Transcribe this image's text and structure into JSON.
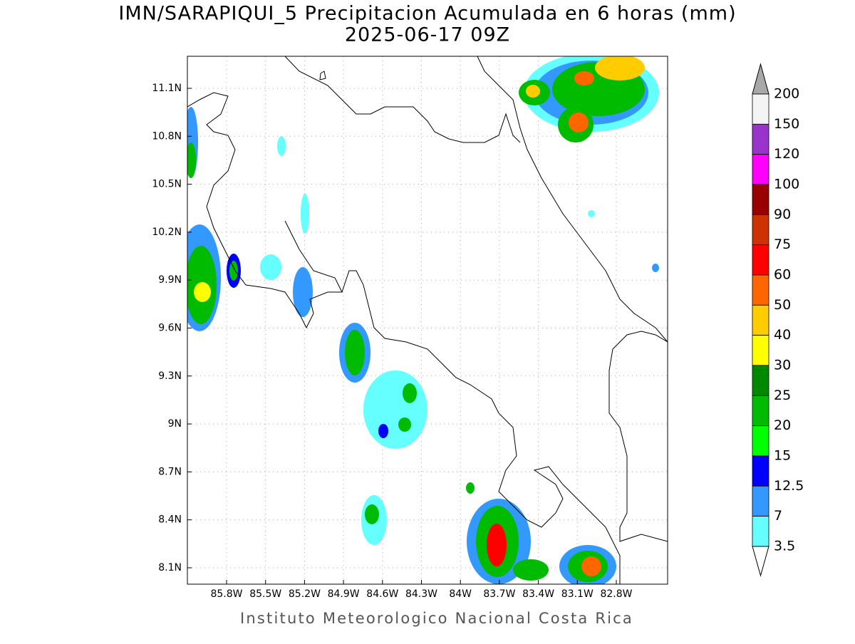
{
  "header": {
    "title": "IMN/SARAPIQUI_5 Precipitacion Acumulada en 6 horas (mm)",
    "subtitle": "2025-06-17 09Z"
  },
  "map": {
    "x_labels": [
      "85.8W",
      "85.5W",
      "85.2W",
      "84.9W",
      "84.6W",
      "84.3W",
      "84W",
      "83.7W",
      "83.4W",
      "83.1W",
      "82.8W"
    ],
    "y_labels": [
      "11.1N",
      "10.8N",
      "10.5N",
      "10.2N",
      "9.9N",
      "9.6N",
      "9.3N",
      "9N",
      "8.7N",
      "8.4N",
      "8.1N"
    ]
  },
  "colorbar": {
    "levels": [
      200,
      150,
      120,
      100,
      90,
      75,
      60,
      50,
      40,
      30,
      25,
      20,
      15,
      12.5,
      7,
      3.5
    ],
    "colors": [
      "#f4f4f4",
      "#9933cc",
      "#ff00ff",
      "#990000",
      "#cc3300",
      "#ff0000",
      "#ff6600",
      "#ffcc00",
      "#ffff00",
      "#008800",
      "#00bb00",
      "#00ff00",
      "#0000ff",
      "#3399ff",
      "#66ffff"
    ],
    "over_color": "#a8a8a8",
    "under_color": "#ffffff"
  },
  "footer": "Instituto Meteorologico Nacional Costa Rica"
}
